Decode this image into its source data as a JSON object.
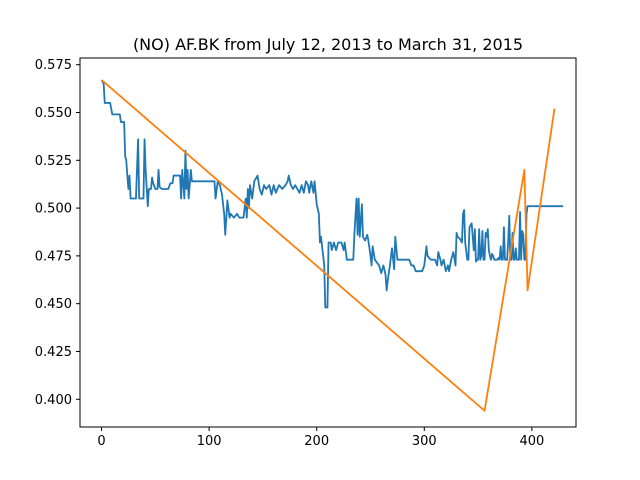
{
  "chart_data": {
    "type": "line",
    "title": "(NO) AF.BK from July 12, 2013 to March 31, 2015",
    "xlabel": "",
    "ylabel": "",
    "xlim": [
      -20,
      441
    ],
    "ylim": [
      0.3855,
      0.5785
    ],
    "x_ticks": [
      0,
      100,
      200,
      300,
      400
    ],
    "y_ticks": [
      0.4,
      0.425,
      0.45,
      0.475,
      0.5,
      0.525,
      0.55,
      0.575
    ],
    "y_tick_labels": [
      "0.400",
      "0.425",
      "0.450",
      "0.475",
      "0.500",
      "0.525",
      "0.550",
      "0.575"
    ],
    "grid": false,
    "series": [
      {
        "color": "#1f77b4",
        "points": [
          [
            0,
            0.567
          ],
          [
            2,
            0.565
          ],
          [
            3,
            0.555
          ],
          [
            8,
            0.555
          ],
          [
            10,
            0.549
          ],
          [
            17,
            0.549
          ],
          [
            18,
            0.545
          ],
          [
            21,
            0.545
          ],
          [
            22,
            0.527
          ],
          [
            23,
            0.525
          ],
          [
            24,
            0.517
          ],
          [
            25,
            0.51
          ],
          [
            26,
            0.517
          ],
          [
            27,
            0.505
          ],
          [
            32,
            0.505
          ],
          [
            34,
            0.536
          ],
          [
            35,
            0.505
          ],
          [
            39,
            0.505
          ],
          [
            40,
            0.536
          ],
          [
            41,
            0.52
          ],
          [
            43,
            0.501
          ],
          [
            44,
            0.51
          ],
          [
            46,
            0.51
          ],
          [
            47,
            0.516
          ],
          [
            48,
            0.513
          ],
          [
            50,
            0.51
          ],
          [
            52,
            0.51
          ],
          [
            53,
            0.52
          ],
          [
            54,
            0.511
          ],
          [
            56,
            0.51
          ],
          [
            62,
            0.51
          ],
          [
            64,
            0.513
          ],
          [
            66,
            0.513
          ],
          [
            67,
            0.517
          ],
          [
            73,
            0.517
          ],
          [
            74,
            0.505
          ],
          [
            75,
            0.52
          ],
          [
            77,
            0.505
          ],
          [
            78,
            0.53
          ],
          [
            79,
            0.51
          ],
          [
            80,
            0.52
          ],
          [
            81,
            0.505
          ],
          [
            83,
            0.52
          ],
          [
            84,
            0.514
          ],
          [
            100,
            0.514
          ],
          [
            105,
            0.514
          ],
          [
            106,
            0.505
          ],
          [
            108,
            0.514
          ],
          [
            110,
            0.512
          ],
          [
            112,
            0.507
          ],
          [
            114,
            0.497
          ],
          [
            115,
            0.486
          ],
          [
            117,
            0.504
          ],
          [
            119,
            0.495
          ],
          [
            120,
            0.497
          ],
          [
            123,
            0.495
          ],
          [
            126,
            0.497
          ],
          [
            128,
            0.495
          ],
          [
            132,
            0.495
          ],
          [
            134,
            0.505
          ],
          [
            135,
            0.495
          ],
          [
            136,
            0.51
          ],
          [
            137,
            0.5
          ],
          [
            138,
            0.512
          ],
          [
            140,
            0.505
          ],
          [
            142,
            0.514
          ],
          [
            145,
            0.517
          ],
          [
            147,
            0.51
          ],
          [
            149,
            0.507
          ],
          [
            151,
            0.512
          ],
          [
            153,
            0.51
          ],
          [
            156,
            0.512
          ],
          [
            158,
            0.507
          ],
          [
            160,
            0.512
          ],
          [
            162,
            0.508
          ],
          [
            165,
            0.512
          ],
          [
            168,
            0.51
          ],
          [
            171,
            0.512
          ],
          [
            173,
            0.514
          ],
          [
            174,
            0.517
          ],
          [
            176,
            0.512
          ],
          [
            178,
            0.51
          ],
          [
            180,
            0.512
          ],
          [
            182,
            0.51
          ],
          [
            184,
            0.508
          ],
          [
            186,
            0.512
          ],
          [
            188,
            0.508
          ],
          [
            190,
            0.514
          ],
          [
            192,
            0.512
          ],
          [
            193,
            0.508
          ],
          [
            195,
            0.514
          ],
          [
            197,
            0.508
          ],
          [
            198,
            0.514
          ],
          [
            199,
            0.508
          ],
          [
            200,
            0.502
          ],
          [
            202,
            0.497
          ],
          [
            203,
            0.482
          ],
          [
            204,
            0.485
          ],
          [
            205,
            0.48
          ],
          [
            207,
            0.47
          ],
          [
            208,
            0.448
          ],
          [
            210,
            0.448
          ],
          [
            211,
            0.482
          ],
          [
            213,
            0.482
          ],
          [
            214,
            0.478
          ],
          [
            216,
            0.482
          ],
          [
            218,
            0.478
          ],
          [
            220,
            0.482
          ],
          [
            223,
            0.482
          ],
          [
            225,
            0.478
          ],
          [
            226,
            0.482
          ],
          [
            228,
            0.473
          ],
          [
            234,
            0.473
          ],
          [
            235,
            0.486
          ],
          [
            237,
            0.505
          ],
          [
            238,
            0.486
          ],
          [
            239,
            0.505
          ],
          [
            240,
            0.485
          ],
          [
            242,
            0.502
          ],
          [
            243,
            0.485
          ],
          [
            245,
            0.483
          ],
          [
            247,
            0.486
          ],
          [
            248,
            0.483
          ],
          [
            250,
            0.475
          ],
          [
            251,
            0.47
          ],
          [
            252,
            0.48
          ],
          [
            254,
            0.473
          ],
          [
            258,
            0.47
          ],
          [
            260,
            0.466
          ],
          [
            262,
            0.47
          ],
          [
            264,
            0.465
          ],
          [
            265,
            0.457
          ],
          [
            266,
            0.462
          ],
          [
            268,
            0.47
          ],
          [
            270,
            0.479
          ],
          [
            272,
            0.468
          ],
          [
            273,
            0.485
          ],
          [
            275,
            0.473
          ],
          [
            286,
            0.473
          ],
          [
            288,
            0.47
          ],
          [
            290,
            0.47
          ],
          [
            292,
            0.467
          ],
          [
            298,
            0.467
          ],
          [
            300,
            0.47
          ],
          [
            302,
            0.48
          ],
          [
            303,
            0.475
          ],
          [
            306,
            0.473
          ],
          [
            310,
            0.473
          ],
          [
            312,
            0.47
          ],
          [
            313,
            0.477
          ],
          [
            315,
            0.473
          ],
          [
            316,
            0.47
          ],
          [
            318,
            0.473
          ],
          [
            320,
            0.467
          ],
          [
            322,
            0.47
          ],
          [
            323,
            0.467
          ],
          [
            325,
            0.473
          ],
          [
            327,
            0.477
          ],
          [
            329,
            0.47
          ],
          [
            330,
            0.487
          ],
          [
            331,
            0.485
          ],
          [
            333,
            0.484
          ],
          [
            335,
            0.482
          ],
          [
            336,
            0.497
          ],
          [
            337,
            0.499
          ],
          [
            338,
            0.482
          ],
          [
            340,
            0.473
          ],
          [
            341,
            0.473
          ],
          [
            342,
            0.49
          ],
          [
            344,
            0.492
          ],
          [
            345,
            0.485
          ],
          [
            346,
            0.478
          ],
          [
            347,
            0.489
          ],
          [
            348,
            0.472
          ],
          [
            349,
            0.473
          ],
          [
            350,
            0.473
          ],
          [
            351,
            0.489
          ],
          [
            352,
            0.473
          ],
          [
            353,
            0.475
          ],
          [
            354,
            0.488
          ],
          [
            355,
            0.473
          ],
          [
            356,
            0.473
          ],
          [
            357,
            0.487
          ],
          [
            358,
            0.485
          ],
          [
            359,
            0.489
          ],
          [
            360,
            0.478
          ],
          [
            361,
            0.475
          ],
          [
            362,
            0.473
          ],
          [
            363,
            0.476
          ],
          [
            364,
            0.475
          ],
          [
            365,
            0.473
          ],
          [
            366,
            0.473
          ],
          [
            367,
            0.473
          ],
          [
            368,
            0.473
          ],
          [
            369,
            0.474
          ],
          [
            370,
            0.473
          ],
          [
            371,
            0.48
          ],
          [
            372,
            0.473
          ],
          [
            373,
            0.473
          ],
          [
            374,
            0.49
          ],
          [
            375,
            0.473
          ],
          [
            376,
            0.473
          ],
          [
            377,
            0.473
          ],
          [
            378,
            0.483
          ],
          [
            379,
            0.496
          ],
          [
            380,
            0.473
          ],
          [
            381,
            0.473
          ],
          [
            382,
            0.487
          ],
          [
            383,
            0.473
          ],
          [
            384,
            0.473
          ],
          [
            385,
            0.479
          ],
          [
            386,
            0.473
          ],
          [
            387,
            0.473
          ],
          [
            388,
            0.473
          ],
          [
            389,
            0.498
          ],
          [
            390,
            0.473
          ],
          [
            391,
            0.488
          ],
          [
            392,
            0.486
          ],
          [
            393,
            0.473
          ],
          [
            394,
            0.473
          ],
          [
            395,
            0.497
          ],
          [
            396,
            0.501
          ],
          [
            397,
            0.501
          ],
          [
            398,
            0.501
          ],
          [
            399,
            0.501
          ],
          [
            400,
            0.501
          ],
          [
            401,
            0.501
          ],
          [
            402,
            0.501
          ],
          [
            403,
            0.501
          ],
          [
            404,
            0.501
          ],
          [
            405,
            0.501
          ],
          [
            406,
            0.501
          ],
          [
            407,
            0.501
          ],
          [
            408,
            0.501
          ],
          [
            409,
            0.501
          ],
          [
            410,
            0.501
          ],
          [
            411,
            0.501
          ],
          [
            412,
            0.501
          ],
          [
            413,
            0.501
          ],
          [
            414,
            0.501
          ],
          [
            415,
            0.501
          ],
          [
            416,
            0.501
          ],
          [
            417,
            0.501
          ],
          [
            418,
            0.501
          ],
          [
            419,
            0.501
          ],
          [
            420,
            0.501
          ],
          [
            421,
            0.501
          ],
          [
            422,
            0.501
          ],
          [
            423,
            0.501
          ],
          [
            424,
            0.501
          ],
          [
            425,
            0.501
          ],
          [
            426,
            0.501
          ],
          [
            427,
            0.501
          ],
          [
            428,
            0.501
          ],
          [
            429,
            0.501
          ]
        ]
      },
      {
        "color": "#ff7f0e",
        "points": [
          [
            0,
            0.567
          ],
          [
            356,
            0.394
          ],
          [
            393,
            0.52
          ],
          [
            396,
            0.457
          ],
          [
            421,
            0.552
          ]
        ]
      }
    ]
  }
}
